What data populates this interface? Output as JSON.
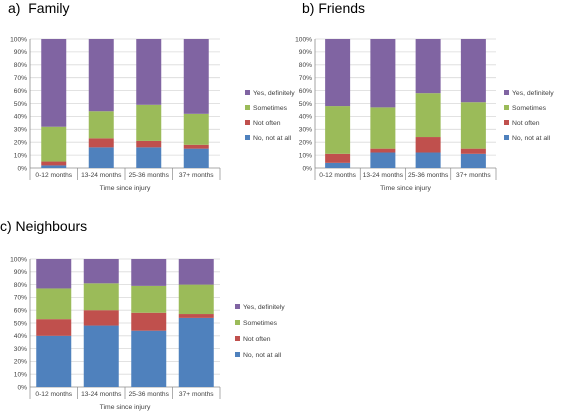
{
  "colors": {
    "no_not_at_all": "#4f81bd",
    "not_often": "#c0504d",
    "sometimes": "#9bbb59",
    "yes_definitely": "#8064a2",
    "gridline": "#d9d9d9",
    "axis": "#8c8c8c"
  },
  "chart_data": [
    {
      "type": "bar",
      "stacked": true,
      "title": "a)  Family",
      "xlabel": "Time since injury",
      "ylabel": "",
      "ylim": [
        0,
        100
      ],
      "yticks": [
        "0%",
        "10%",
        "20%",
        "30%",
        "40%",
        "50%",
        "60%",
        "70%",
        "80%",
        "90%",
        "100%"
      ],
      "categories": [
        "0-12 months",
        "13-24 months",
        "25-36 months",
        "37+ months"
      ],
      "legend_position": "right",
      "grid": true,
      "series": [
        {
          "name": "No, not at all",
          "values": [
            2,
            16,
            16,
            15
          ]
        },
        {
          "name": "Not often",
          "values": [
            3,
            7,
            5,
            3
          ]
        },
        {
          "name": "Sometimes",
          "values": [
            27,
            21,
            28,
            24
          ]
        },
        {
          "name": "Yes, definitely",
          "values": [
            68,
            56,
            51,
            58
          ]
        }
      ]
    },
    {
      "type": "bar",
      "stacked": true,
      "title": "b) Friends",
      "xlabel": "Time since injury",
      "ylabel": "",
      "ylim": [
        0,
        100
      ],
      "yticks": [
        "0%",
        "10%",
        "20%",
        "30%",
        "40%",
        "50%",
        "60%",
        "70%",
        "80%",
        "90%",
        "100%"
      ],
      "categories": [
        "0-12 months",
        "13-24 months",
        "25-36 months",
        "37+ months"
      ],
      "legend_position": "right",
      "grid": true,
      "series": [
        {
          "name": "No, not at all",
          "values": [
            4,
            12,
            12,
            11
          ]
        },
        {
          "name": "Not often",
          "values": [
            7,
            3,
            12,
            4
          ]
        },
        {
          "name": "Sometimes",
          "values": [
            37,
            32,
            34,
            36
          ]
        },
        {
          "name": "Yes, definitely",
          "values": [
            52,
            53,
            42,
            49
          ]
        }
      ]
    },
    {
      "type": "bar",
      "stacked": true,
      "title": "c) Neighbours",
      "xlabel": "Time since injury",
      "ylabel": "",
      "ylim": [
        0,
        100
      ],
      "yticks": [
        "0%",
        "10%",
        "20%",
        "30%",
        "40%",
        "50%",
        "60%",
        "70%",
        "80%",
        "90%",
        "100%"
      ],
      "categories": [
        "0-12 months",
        "13-24 months",
        "25-36 months",
        "37+ months"
      ],
      "legend_position": "right",
      "grid": true,
      "series": [
        {
          "name": "No, not at all",
          "values": [
            40,
            48,
            44,
            54
          ]
        },
        {
          "name": "Not often",
          "values": [
            13,
            12,
            14,
            3
          ]
        },
        {
          "name": "Sometimes",
          "values": [
            24,
            21,
            21,
            23
          ]
        },
        {
          "name": "Yes, definitely",
          "values": [
            23,
            19,
            21,
            20
          ]
        }
      ]
    }
  ]
}
